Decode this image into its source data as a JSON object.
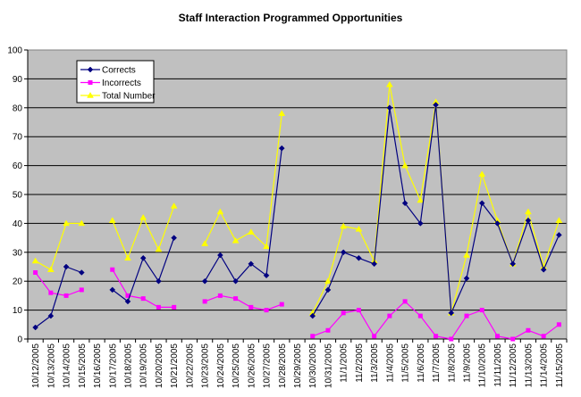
{
  "chart_data": {
    "type": "line",
    "title": "Staff Interaction Programmed Opportunities",
    "xlabel": "",
    "ylabel": "",
    "ylim": [
      0,
      100
    ],
    "y_ticks": [
      0,
      10,
      20,
      30,
      40,
      50,
      60,
      70,
      80,
      90,
      100
    ],
    "grid": "horizontal",
    "plot_background": "#c0c0c0",
    "legend_position": "top-left",
    "categories": [
      "10/12/2005",
      "10/13/2005",
      "10/14/2005",
      "10/15/2005",
      "10/16/2005",
      "10/17/2005",
      "10/18/2005",
      "10/19/2005",
      "10/20/2005",
      "10/21/2005",
      "10/22/2005",
      "10/23/2005",
      "10/24/2005",
      "10/25/2005",
      "10/26/2005",
      "10/27/2005",
      "10/28/2005",
      "10/29/2005",
      "10/30/2005",
      "10/31/2005",
      "11/1/2005",
      "11/2/2005",
      "11/3/2005",
      "11/4/2005",
      "11/5/2005",
      "11/6/2005",
      "11/7/2005",
      "11/8/2005",
      "11/9/2005",
      "11/10/2005",
      "11/11/2005",
      "11/12/2005",
      "11/13/2005",
      "11/14/2005",
      "11/15/2005"
    ],
    "series": [
      {
        "name": "Corrects",
        "color": "#000080",
        "marker": "diamond",
        "values": [
          4,
          8,
          25,
          23,
          null,
          17,
          13,
          28,
          20,
          35,
          null,
          20,
          29,
          20,
          26,
          22,
          66,
          null,
          8,
          17,
          30,
          28,
          26,
          80,
          47,
          40,
          81,
          9,
          21,
          47,
          40,
          26,
          41,
          24,
          36
        ]
      },
      {
        "name": "Incorrects",
        "color": "#ff00ff",
        "marker": "square",
        "values": [
          23,
          16,
          15,
          17,
          null,
          24,
          15,
          14,
          11,
          11,
          null,
          13,
          15,
          14,
          11,
          10,
          12,
          null,
          1,
          3,
          9,
          10,
          1,
          8,
          13,
          8,
          1,
          0,
          8,
          10,
          1,
          0,
          3,
          1,
          5
        ]
      },
      {
        "name": "Total Number",
        "color": "#ffff00",
        "marker": "triangle",
        "values": [
          27,
          24,
          40,
          40,
          null,
          41,
          28,
          42,
          31,
          46,
          null,
          33,
          44,
          34,
          37,
          32,
          78,
          null,
          9,
          20,
          39,
          38,
          27,
          88,
          60,
          48,
          82,
          9,
          29,
          57,
          41,
          26,
          44,
          25,
          41
        ]
      }
    ]
  }
}
